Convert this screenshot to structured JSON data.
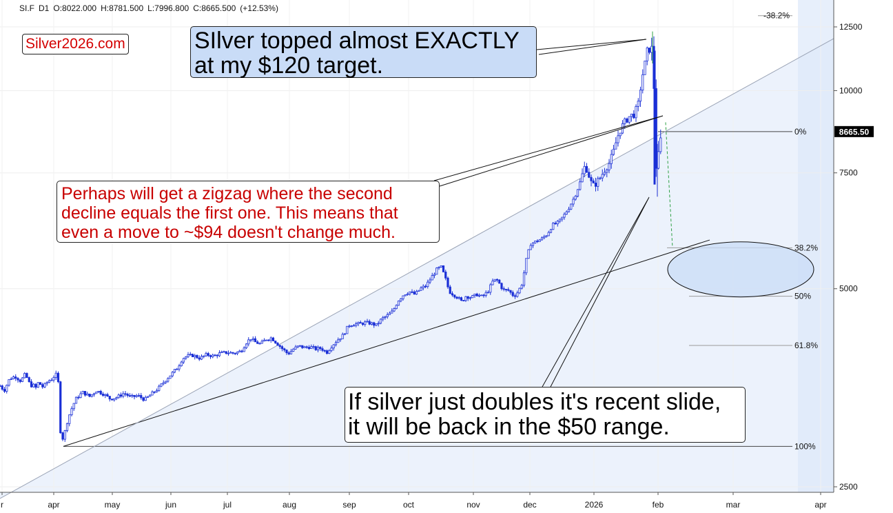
{
  "header": {
    "symbol": "SI.F",
    "interval": "D1",
    "open": "O:8022.000",
    "high": "H:8781.500",
    "low": "L:7996.800",
    "close": "C:8665.500",
    "change": "(+12.53%)"
  },
  "brand": "Silver2026.com",
  "annotations": {
    "top_callout": [
      "SIlver topped almost EXACTLY",
      "at my $120 target."
    ],
    "zigzag_callout": [
      "Perhaps will get a zigzag where the second",
      "decline equals the first one. This means that",
      "even a move to ~$94 doesn't change much."
    ],
    "slide_callout": [
      "If silver just doubles it's recent slide,",
      "it will be back in the $50 range."
    ]
  },
  "colors": {
    "candle": "#1a2fd6",
    "callout_fill": "#c9dcf7",
    "zigzag_text": "#c80000",
    "brand_text": "#d40000",
    "projection": "#2ea043",
    "fib_line": "#9a9a9a",
    "price_badge": "#000000"
  },
  "chart_data": {
    "type": "candlestick",
    "y_scale": "log",
    "ylim": [
      2400,
      13200
    ],
    "y_ticks": [
      2500,
      5000,
      7500,
      10000,
      12500
    ],
    "x_ticks": [
      "r",
      "apr",
      "may",
      "jun",
      "jul",
      "aug",
      "sep",
      "oct",
      "nov",
      "dec",
      "2026",
      "feb",
      "mar",
      "apr"
    ],
    "last_price_label": "8665.50",
    "last_price": 8665.5,
    "fib_levels": [
      {
        "label": "-38.2%",
        "price": 13000
      },
      {
        "label": "0%",
        "price": 8665.5
      },
      {
        "label": "38.2%",
        "price": 5770
      },
      {
        "label": "50%",
        "price": 4870
      },
      {
        "label": "61.8%",
        "price": 4100
      },
      {
        "label": "100%",
        "price": 2880
      }
    ],
    "path_points": [
      [
        0,
        3560
      ],
      [
        6,
        3500
      ],
      [
        14,
        3650
      ],
      [
        22,
        3680
      ],
      [
        30,
        3620
      ],
      [
        36,
        3700
      ],
      [
        40,
        3650
      ],
      [
        44,
        3560
      ],
      [
        48,
        3570
      ],
      [
        54,
        3520
      ],
      [
        56,
        3640
      ],
      [
        60,
        3540
      ],
      [
        64,
        3560
      ],
      [
        70,
        3620
      ],
      [
        76,
        3650
      ],
      [
        80,
        3700
      ],
      [
        84,
        3700
      ],
      [
        86,
        3300
      ],
      [
        88,
        3000
      ],
      [
        92,
        2950
      ],
      [
        96,
        3100
      ],
      [
        102,
        3250
      ],
      [
        110,
        3400
      ],
      [
        120,
        3480
      ],
      [
        130,
        3430
      ],
      [
        140,
        3500
      ],
      [
        150,
        3460
      ],
      [
        160,
        3400
      ],
      [
        170,
        3420
      ],
      [
        180,
        3470
      ],
      [
        190,
        3420
      ],
      [
        200,
        3440
      ],
      [
        210,
        3390
      ],
      [
        220,
        3460
      ],
      [
        230,
        3530
      ],
      [
        240,
        3630
      ],
      [
        250,
        3720
      ],
      [
        258,
        3800
      ],
      [
        265,
        3920
      ],
      [
        272,
        3950
      ],
      [
        280,
        3960
      ],
      [
        290,
        3920
      ],
      [
        300,
        3970
      ],
      [
        310,
        3950
      ],
      [
        320,
        3990
      ],
      [
        330,
        4000
      ],
      [
        340,
        3990
      ],
      [
        350,
        4020
      ],
      [
        358,
        4150
      ],
      [
        364,
        4200
      ],
      [
        370,
        4150
      ],
      [
        378,
        4120
      ],
      [
        386,
        4190
      ],
      [
        394,
        4210
      ],
      [
        402,
        4130
      ],
      [
        410,
        4050
      ],
      [
        418,
        3980
      ],
      [
        426,
        4050
      ],
      [
        434,
        4090
      ],
      [
        442,
        4070
      ],
      [
        450,
        4080
      ],
      [
        458,
        4050
      ],
      [
        466,
        4060
      ],
      [
        474,
        4000
      ],
      [
        482,
        4100
      ],
      [
        490,
        4180
      ],
      [
        498,
        4250
      ],
      [
        506,
        4400
      ],
      [
        514,
        4420
      ],
      [
        522,
        4420
      ],
      [
        530,
        4440
      ],
      [
        538,
        4430
      ],
      [
        546,
        4400
      ],
      [
        554,
        4500
      ],
      [
        562,
        4550
      ],
      [
        570,
        4620
      ],
      [
        578,
        4800
      ],
      [
        586,
        4900
      ],
      [
        594,
        4950
      ],
      [
        602,
        4900
      ],
      [
        610,
        5000
      ],
      [
        618,
        5050
      ],
      [
        626,
        5200
      ],
      [
        634,
        5350
      ],
      [
        640,
        5400
      ],
      [
        646,
        5200
      ],
      [
        652,
        4950
      ],
      [
        658,
        4900
      ],
      [
        664,
        4850
      ],
      [
        670,
        4780
      ],
      [
        676,
        4870
      ],
      [
        684,
        4850
      ],
      [
        692,
        4900
      ],
      [
        700,
        4860
      ],
      [
        708,
        4950
      ],
      [
        716,
        5150
      ],
      [
        722,
        5150
      ],
      [
        730,
        4980
      ],
      [
        738,
        4970
      ],
      [
        746,
        4870
      ],
      [
        752,
        4950
      ],
      [
        758,
        5100
      ],
      [
        764,
        5550
      ],
      [
        770,
        5850
      ],
      [
        778,
        5900
      ],
      [
        786,
        5950
      ],
      [
        794,
        6050
      ],
      [
        802,
        6250
      ],
      [
        810,
        6300
      ],
      [
        818,
        6450
      ],
      [
        826,
        6650
      ],
      [
        834,
        6900
      ],
      [
        842,
        7250
      ],
      [
        848,
        7650
      ],
      [
        852,
        7600
      ],
      [
        856,
        7350
      ],
      [
        860,
        7150
      ],
      [
        866,
        7250
      ],
      [
        872,
        7400
      ],
      [
        878,
        7600
      ],
      [
        884,
        7750
      ],
      [
        890,
        8050
      ],
      [
        896,
        8500
      ],
      [
        902,
        8800
      ],
      [
        908,
        9000
      ],
      [
        914,
        9150
      ],
      [
        920,
        9200
      ],
      [
        926,
        9500
      ],
      [
        932,
        10500
      ],
      [
        936,
        11000
      ],
      [
        940,
        11600
      ],
      [
        944,
        11700
      ],
      [
        948,
        11300
      ],
      [
        950,
        9000
      ],
      [
        952,
        7700
      ],
      [
        954,
        7800
      ],
      [
        956,
        7950
      ],
      [
        958,
        8200
      ],
      [
        960,
        8665
      ]
    ],
    "trendlines": [
      {
        "name": "lower",
        "points": [
          [
            92,
            2880
          ],
          [
            1030,
            5930
          ]
        ]
      },
      {
        "name": "diagonal",
        "points": [
          [
            0,
            2400
          ],
          [
            1210,
            12000
          ]
        ]
      }
    ],
    "projection": {
      "points": [
        [
          966,
          8950
        ],
        [
          976,
          5770
        ]
      ]
    },
    "target_ellipse": {
      "center": [
        1075,
        5350
      ],
      "rx": 106,
      "ry": 40
    }
  }
}
